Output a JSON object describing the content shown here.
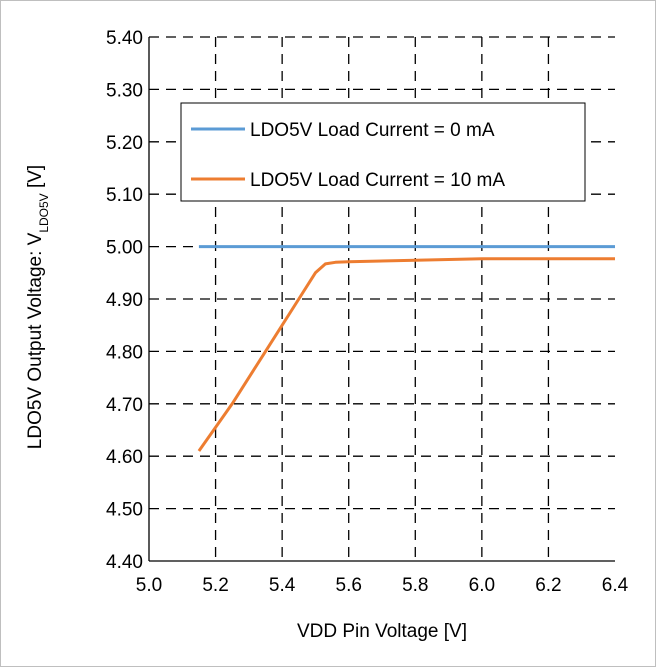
{
  "chart_data": {
    "type": "line",
    "title": "",
    "xlabel": "VDD Pin Voltage [V]",
    "ylabel": {
      "main": "LDO5V Output Voltage: V",
      "subscript": "LDO5V",
      "unit": " [V]"
    },
    "xlim": [
      5.0,
      6.4
    ],
    "ylim": [
      4.4,
      5.4
    ],
    "x_ticks": [
      "5.0",
      "5.2",
      "5.4",
      "5.6",
      "5.8",
      "6.0",
      "6.2",
      "6.4"
    ],
    "y_ticks": [
      "4.40",
      "4.50",
      "4.60",
      "4.70",
      "4.80",
      "4.90",
      "5.00",
      "5.10",
      "5.20",
      "5.30",
      "5.40"
    ],
    "grid": "dashed",
    "legend_position": "top-center",
    "series": [
      {
        "name": "LDO5V Load Current = 0 mA",
        "color": "#5b9bd5",
        "x": [
          5.15,
          5.3,
          5.5,
          5.7,
          5.9,
          6.1,
          6.3,
          6.4
        ],
        "y": [
          5.0,
          5.0,
          5.0,
          5.0,
          5.0,
          5.0,
          5.0,
          5.0
        ]
      },
      {
        "name": "LDO5V Load Current = 10 mA",
        "color": "#ed7d31",
        "x": [
          5.15,
          5.25,
          5.35,
          5.45,
          5.5,
          5.53,
          5.56,
          5.6,
          5.8,
          6.0,
          6.2,
          6.4
        ],
        "y": [
          4.61,
          4.7,
          4.8,
          4.9,
          4.95,
          4.967,
          4.97,
          4.971,
          4.974,
          4.977,
          4.977,
          4.977
        ]
      }
    ]
  }
}
